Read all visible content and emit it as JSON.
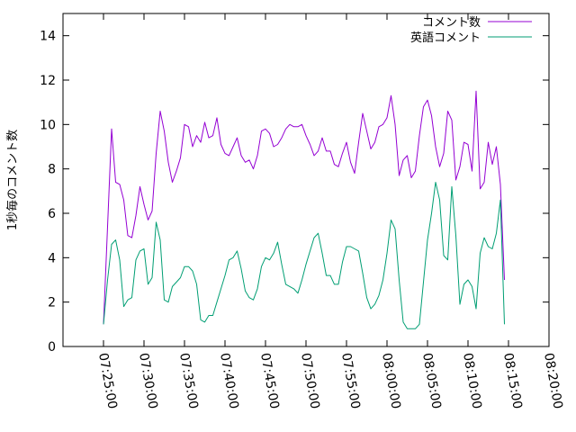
{
  "chart_data": {
    "type": "line",
    "title": "",
    "xlabel": "",
    "ylabel": "1秒毎のコメント数",
    "ylim": [
      0,
      15
    ],
    "yticks": [
      0,
      2,
      4,
      6,
      8,
      10,
      12,
      14
    ],
    "xlim": [
      "07:20:00",
      "08:20:00"
    ],
    "xticks": [
      "07:25:00",
      "07:30:00",
      "07:35:00",
      "07:40:00",
      "07:45:00",
      "07:50:00",
      "07:55:00",
      "08:00:00",
      "08:05:00",
      "08:10:00",
      "08:15:00",
      "08:20:00"
    ],
    "grid": false,
    "legend_position": "top-right",
    "series": [
      {
        "name": "コメント数",
        "color": "#9400d3",
        "points": [
          [
            "07:25:00",
            1.0
          ],
          [
            "07:25:30",
            5.4
          ],
          [
            "07:26:00",
            9.8
          ],
          [
            "07:26:30",
            7.4
          ],
          [
            "07:27:00",
            7.3
          ],
          [
            "07:27:30",
            6.6
          ],
          [
            "07:28:00",
            5.0
          ],
          [
            "07:28:30",
            4.9
          ],
          [
            "07:29:00",
            5.9
          ],
          [
            "07:29:30",
            7.2
          ],
          [
            "07:30:00",
            6.4
          ],
          [
            "07:30:30",
            5.7
          ],
          [
            "07:31:00",
            6.1
          ],
          [
            "07:31:30",
            8.7
          ],
          [
            "07:32:00",
            10.6
          ],
          [
            "07:32:30",
            9.7
          ],
          [
            "07:33:00",
            8.3
          ],
          [
            "07:33:30",
            7.4
          ],
          [
            "07:34:00",
            7.9
          ],
          [
            "07:34:30",
            8.5
          ],
          [
            "07:35:00",
            10.0
          ],
          [
            "07:35:30",
            9.9
          ],
          [
            "07:36:00",
            9.0
          ],
          [
            "07:36:30",
            9.5
          ],
          [
            "07:37:00",
            9.2
          ],
          [
            "07:37:30",
            10.1
          ],
          [
            "07:38:00",
            9.4
          ],
          [
            "07:38:30",
            9.5
          ],
          [
            "07:39:00",
            10.3
          ],
          [
            "07:39:30",
            9.1
          ],
          [
            "07:40:00",
            8.7
          ],
          [
            "07:40:30",
            8.6
          ],
          [
            "07:41:00",
            9.0
          ],
          [
            "07:41:30",
            9.4
          ],
          [
            "07:42:00",
            8.6
          ],
          [
            "07:42:30",
            8.3
          ],
          [
            "07:43:00",
            8.4
          ],
          [
            "07:43:30",
            8.0
          ],
          [
            "07:44:00",
            8.6
          ],
          [
            "07:44:30",
            9.7
          ],
          [
            "07:45:00",
            9.8
          ],
          [
            "07:45:30",
            9.6
          ],
          [
            "07:46:00",
            9.0
          ],
          [
            "07:46:30",
            9.1
          ],
          [
            "07:47:00",
            9.4
          ],
          [
            "07:47:30",
            9.8
          ],
          [
            "07:48:00",
            10.0
          ],
          [
            "07:48:30",
            9.9
          ],
          [
            "07:49:00",
            9.9
          ],
          [
            "07:49:30",
            10.0
          ],
          [
            "07:50:00",
            9.5
          ],
          [
            "07:50:30",
            9.1
          ],
          [
            "07:51:00",
            8.6
          ],
          [
            "07:51:30",
            8.8
          ],
          [
            "07:52:00",
            9.4
          ],
          [
            "07:52:30",
            8.8
          ],
          [
            "07:53:00",
            8.8
          ],
          [
            "07:53:30",
            8.2
          ],
          [
            "07:54:00",
            8.1
          ],
          [
            "07:54:30",
            8.7
          ],
          [
            "07:55:00",
            9.2
          ],
          [
            "07:55:30",
            8.3
          ],
          [
            "07:56:00",
            7.8
          ],
          [
            "07:56:30",
            9.2
          ],
          [
            "07:57:00",
            10.5
          ],
          [
            "07:57:30",
            9.7
          ],
          [
            "07:58:00",
            8.9
          ],
          [
            "07:58:30",
            9.2
          ],
          [
            "07:59:00",
            9.9
          ],
          [
            "07:59:30",
            10.0
          ],
          [
            "08:00:00",
            10.3
          ],
          [
            "08:00:30",
            11.3
          ],
          [
            "08:01:00",
            10.0
          ],
          [
            "08:01:30",
            7.7
          ],
          [
            "08:02:00",
            8.4
          ],
          [
            "08:02:30",
            8.6
          ],
          [
            "08:03:00",
            7.6
          ],
          [
            "08:03:30",
            7.9
          ],
          [
            "08:04:00",
            9.5
          ],
          [
            "08:04:30",
            10.8
          ],
          [
            "08:05:00",
            11.1
          ],
          [
            "08:05:30",
            10.4
          ],
          [
            "08:06:00",
            9.0
          ],
          [
            "08:06:30",
            8.1
          ],
          [
            "08:07:00",
            8.7
          ],
          [
            "08:07:30",
            10.6
          ],
          [
            "08:08:00",
            10.2
          ],
          [
            "08:08:30",
            7.5
          ],
          [
            "08:09:00",
            8.1
          ],
          [
            "08:09:30",
            9.2
          ],
          [
            "08:10:00",
            9.1
          ],
          [
            "08:10:30",
            7.9
          ],
          [
            "08:11:00",
            11.5
          ],
          [
            "08:11:30",
            7.1
          ],
          [
            "08:12:00",
            7.4
          ],
          [
            "08:12:30",
            9.2
          ],
          [
            "08:13:00",
            8.2
          ],
          [
            "08:13:30",
            9.0
          ],
          [
            "08:14:00",
            7.3
          ],
          [
            "08:14:30",
            3.0
          ]
        ]
      },
      {
        "name": "英語コメント",
        "color": "#009e73",
        "points": [
          [
            "07:25:00",
            1.0
          ],
          [
            "07:25:30",
            3.0
          ],
          [
            "07:26:00",
            4.6
          ],
          [
            "07:26:30",
            4.8
          ],
          [
            "07:27:00",
            3.9
          ],
          [
            "07:27:30",
            1.8
          ],
          [
            "07:28:00",
            2.1
          ],
          [
            "07:28:30",
            2.2
          ],
          [
            "07:29:00",
            3.9
          ],
          [
            "07:29:30",
            4.3
          ],
          [
            "07:30:00",
            4.4
          ],
          [
            "07:30:30",
            2.8
          ],
          [
            "07:31:00",
            3.1
          ],
          [
            "07:31:30",
            5.6
          ],
          [
            "07:32:00",
            4.8
          ],
          [
            "07:32:30",
            2.1
          ],
          [
            "07:33:00",
            2.0
          ],
          [
            "07:33:30",
            2.7
          ],
          [
            "07:34:00",
            2.9
          ],
          [
            "07:34:30",
            3.1
          ],
          [
            "07:35:00",
            3.6
          ],
          [
            "07:35:30",
            3.6
          ],
          [
            "07:36:00",
            3.4
          ],
          [
            "07:36:30",
            2.8
          ],
          [
            "07:37:00",
            1.2
          ],
          [
            "07:37:30",
            1.1
          ],
          [
            "07:38:00",
            1.4
          ],
          [
            "07:38:30",
            1.4
          ],
          [
            "07:39:00",
            2.0
          ],
          [
            "07:39:30",
            2.6
          ],
          [
            "07:40:00",
            3.2
          ],
          [
            "07:40:30",
            3.9
          ],
          [
            "07:41:00",
            4.0
          ],
          [
            "07:41:30",
            4.3
          ],
          [
            "07:42:00",
            3.5
          ],
          [
            "07:42:30",
            2.5
          ],
          [
            "07:43:00",
            2.2
          ],
          [
            "07:43:30",
            2.1
          ],
          [
            "07:44:00",
            2.6
          ],
          [
            "07:44:30",
            3.6
          ],
          [
            "07:45:00",
            4.0
          ],
          [
            "07:45:30",
            3.9
          ],
          [
            "07:46:00",
            4.2
          ],
          [
            "07:46:30",
            4.7
          ],
          [
            "07:47:00",
            3.7
          ],
          [
            "07:47:30",
            2.8
          ],
          [
            "07:48:00",
            2.7
          ],
          [
            "07:48:30",
            2.6
          ],
          [
            "07:49:00",
            2.4
          ],
          [
            "07:49:30",
            3.0
          ],
          [
            "07:50:00",
            3.7
          ],
          [
            "07:50:30",
            4.3
          ],
          [
            "07:51:00",
            4.9
          ],
          [
            "07:51:30",
            5.1
          ],
          [
            "07:52:00",
            4.2
          ],
          [
            "07:52:30",
            3.2
          ],
          [
            "07:53:00",
            3.2
          ],
          [
            "07:53:30",
            2.8
          ],
          [
            "07:54:00",
            2.8
          ],
          [
            "07:54:30",
            3.8
          ],
          [
            "07:55:00",
            4.5
          ],
          [
            "07:55:30",
            4.5
          ],
          [
            "07:56:00",
            4.4
          ],
          [
            "07:56:30",
            4.3
          ],
          [
            "07:57:00",
            3.3
          ],
          [
            "07:57:30",
            2.2
          ],
          [
            "07:58:00",
            1.7
          ],
          [
            "07:58:30",
            1.9
          ],
          [
            "07:59:00",
            2.3
          ],
          [
            "07:59:30",
            3.0
          ],
          [
            "08:00:00",
            4.2
          ],
          [
            "08:00:30",
            5.7
          ],
          [
            "08:01:00",
            5.3
          ],
          [
            "08:01:30",
            3.0
          ],
          [
            "08:02:00",
            1.1
          ],
          [
            "08:02:30",
            0.8
          ],
          [
            "08:03:00",
            0.8
          ],
          [
            "08:03:30",
            0.8
          ],
          [
            "08:04:00",
            1.0
          ],
          [
            "08:04:30",
            2.9
          ],
          [
            "08:05:00",
            4.8
          ],
          [
            "08:05:30",
            6.0
          ],
          [
            "08:06:00",
            7.4
          ],
          [
            "08:06:30",
            6.6
          ],
          [
            "08:07:00",
            4.1
          ],
          [
            "08:07:30",
            3.9
          ],
          [
            "08:08:00",
            7.2
          ],
          [
            "08:08:30",
            5.0
          ],
          [
            "08:09:00",
            1.9
          ],
          [
            "08:09:30",
            2.8
          ],
          [
            "08:10:00",
            3.0
          ],
          [
            "08:10:30",
            2.7
          ],
          [
            "08:11:00",
            1.7
          ],
          [
            "08:11:30",
            4.2
          ],
          [
            "08:12:00",
            4.9
          ],
          [
            "08:12:30",
            4.5
          ],
          [
            "08:13:00",
            4.4
          ],
          [
            "08:13:30",
            5.1
          ],
          [
            "08:14:00",
            6.6
          ],
          [
            "08:14:30",
            1.0
          ]
        ]
      }
    ]
  }
}
